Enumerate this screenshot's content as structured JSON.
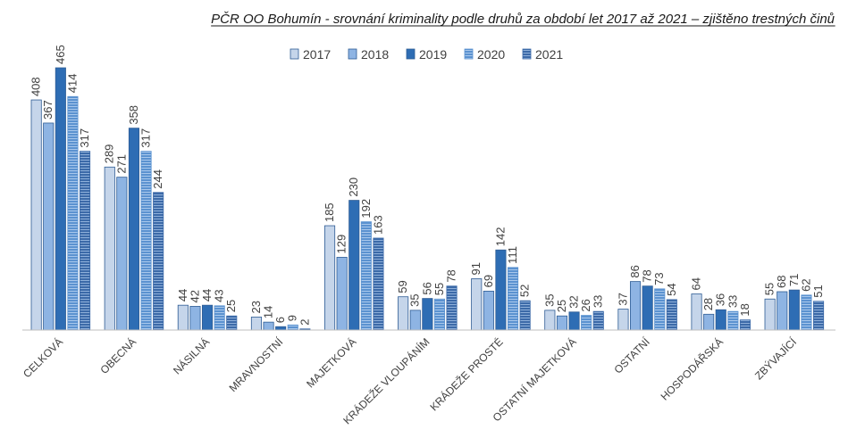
{
  "chart_data": {
    "type": "bar",
    "title": "PČR OO Bohumín - srovnání kriminality podle druhů za období let 2017 až 2021 – zjištěno trestných činů",
    "xlabel": "",
    "ylabel": "",
    "ylim": [
      0,
      465
    ],
    "grid": false,
    "legend_position": "top",
    "categories": [
      "CELKOVÁ",
      "OBECNÁ",
      "NÁSILNÁ",
      "MRAVNOSTNÍ",
      "MAJETKOVÁ",
      "KRÁDEŽE VLOUPÁNÍM",
      "KRÁDEŽE PROSTÉ",
      "OSTATNÍ MAJETKOVÁ",
      "OSTATNÍ",
      "HOSPODÁŘSKÁ",
      "ZBÝVAJÍCÍ"
    ],
    "series": [
      {
        "name": "2017",
        "color": "#c5d5ea",
        "pattern": "solid",
        "values": [
          408,
          289,
          44,
          23,
          185,
          59,
          91,
          35,
          37,
          64,
          55
        ]
      },
      {
        "name": "2018",
        "color": "#8eb4e3",
        "pattern": "solid",
        "values": [
          367,
          271,
          42,
          14,
          129,
          35,
          69,
          25,
          86,
          28,
          68
        ]
      },
      {
        "name": "2019",
        "color": "#2e6db4",
        "pattern": "solid",
        "values": [
          465,
          358,
          44,
          6,
          230,
          56,
          142,
          32,
          78,
          36,
          71
        ]
      },
      {
        "name": "2020",
        "color": "#5b92d0",
        "pattern": "stripes",
        "values": [
          414,
          317,
          43,
          9,
          192,
          55,
          111,
          26,
          73,
          33,
          62
        ]
      },
      {
        "name": "2021",
        "color": "#3c6aa8",
        "pattern": "stripes",
        "values": [
          317,
          244,
          25,
          2,
          163,
          78,
          52,
          33,
          54,
          18,
          51
        ]
      }
    ]
  }
}
